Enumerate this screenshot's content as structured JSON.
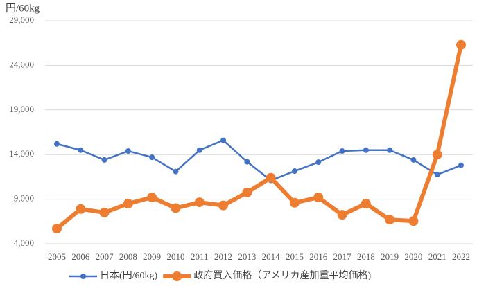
{
  "chart_data": {
    "type": "line",
    "unit_label": "円/60kg",
    "categories": [
      "2005",
      "2006",
      "2007",
      "2008",
      "2009",
      "2010",
      "2011",
      "2012",
      "2013",
      "2014",
      "2015",
      "2016",
      "2017",
      "2018",
      "2019",
      "2020",
      "2021",
      "2022"
    ],
    "series": [
      {
        "name": "日本(円/60kg)",
        "color": "#4472c4",
        "values": [
          15200,
          14500,
          13400,
          14400,
          13700,
          12100,
          14500,
          15600,
          13200,
          11100,
          12150,
          13150,
          14400,
          14500,
          14500,
          13400,
          11750,
          12800
        ]
      },
      {
        "name": "政府買入価格（アメリカ産加重平均価格)",
        "color": "#ed7d31",
        "values": [
          5700,
          7900,
          7500,
          8500,
          9200,
          8000,
          8650,
          8300,
          9750,
          11400,
          8600,
          9200,
          7250,
          8500,
          6700,
          6550,
          14000,
          26300
        ]
      }
    ],
    "ylim": [
      4000,
      29000
    ],
    "yticks": [
      {
        "value": 4000,
        "label": "4,000"
      },
      {
        "value": 9000,
        "label": "9,000"
      },
      {
        "value": 14000,
        "label": "14,000"
      },
      {
        "value": 19000,
        "label": "19,000"
      },
      {
        "value": 24000,
        "label": "24,000"
      },
      {
        "value": 29000,
        "label": "29,000"
      }
    ],
    "grid": true
  }
}
